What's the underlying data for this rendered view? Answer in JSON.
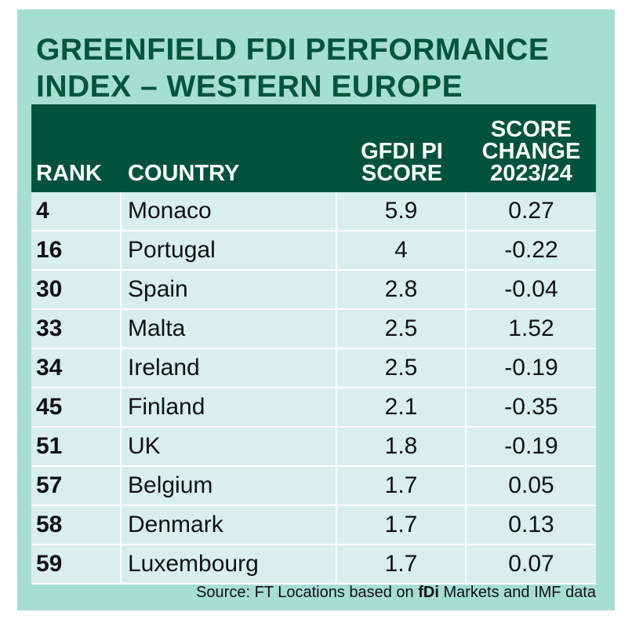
{
  "title": "GREENFIELD FDI PERFORMANCE INDEX – WESTERN EUROPE",
  "table": {
    "header": [
      "RANK",
      "COUNTRY",
      "GFDI PI SCORE",
      "SCORE CHANGE 2023/24"
    ],
    "rows": [
      [
        4,
        "Monaco",
        5.9,
        0.27
      ],
      [
        16,
        "Portugal",
        4,
        -0.22
      ],
      [
        30,
        "Spain",
        2.8,
        -0.04
      ],
      [
        33,
        "Malta",
        2.5,
        1.52
      ],
      [
        34,
        "Ireland",
        2.5,
        -0.19
      ],
      [
        45,
        "Finland",
        2.1,
        -0.35
      ],
      [
        51,
        "UK",
        1.8,
        -0.19
      ],
      [
        57,
        "Belgium",
        1.7,
        0.05
      ],
      [
        58,
        "Denmark",
        1.7,
        0.13
      ],
      [
        59,
        "Luxembourg",
        1.7,
        0.07
      ]
    ]
  },
  "source": {
    "before": "Source: FT Locations based on",
    "bold": "fDi",
    "after": "Markets and IMF data"
  }
}
